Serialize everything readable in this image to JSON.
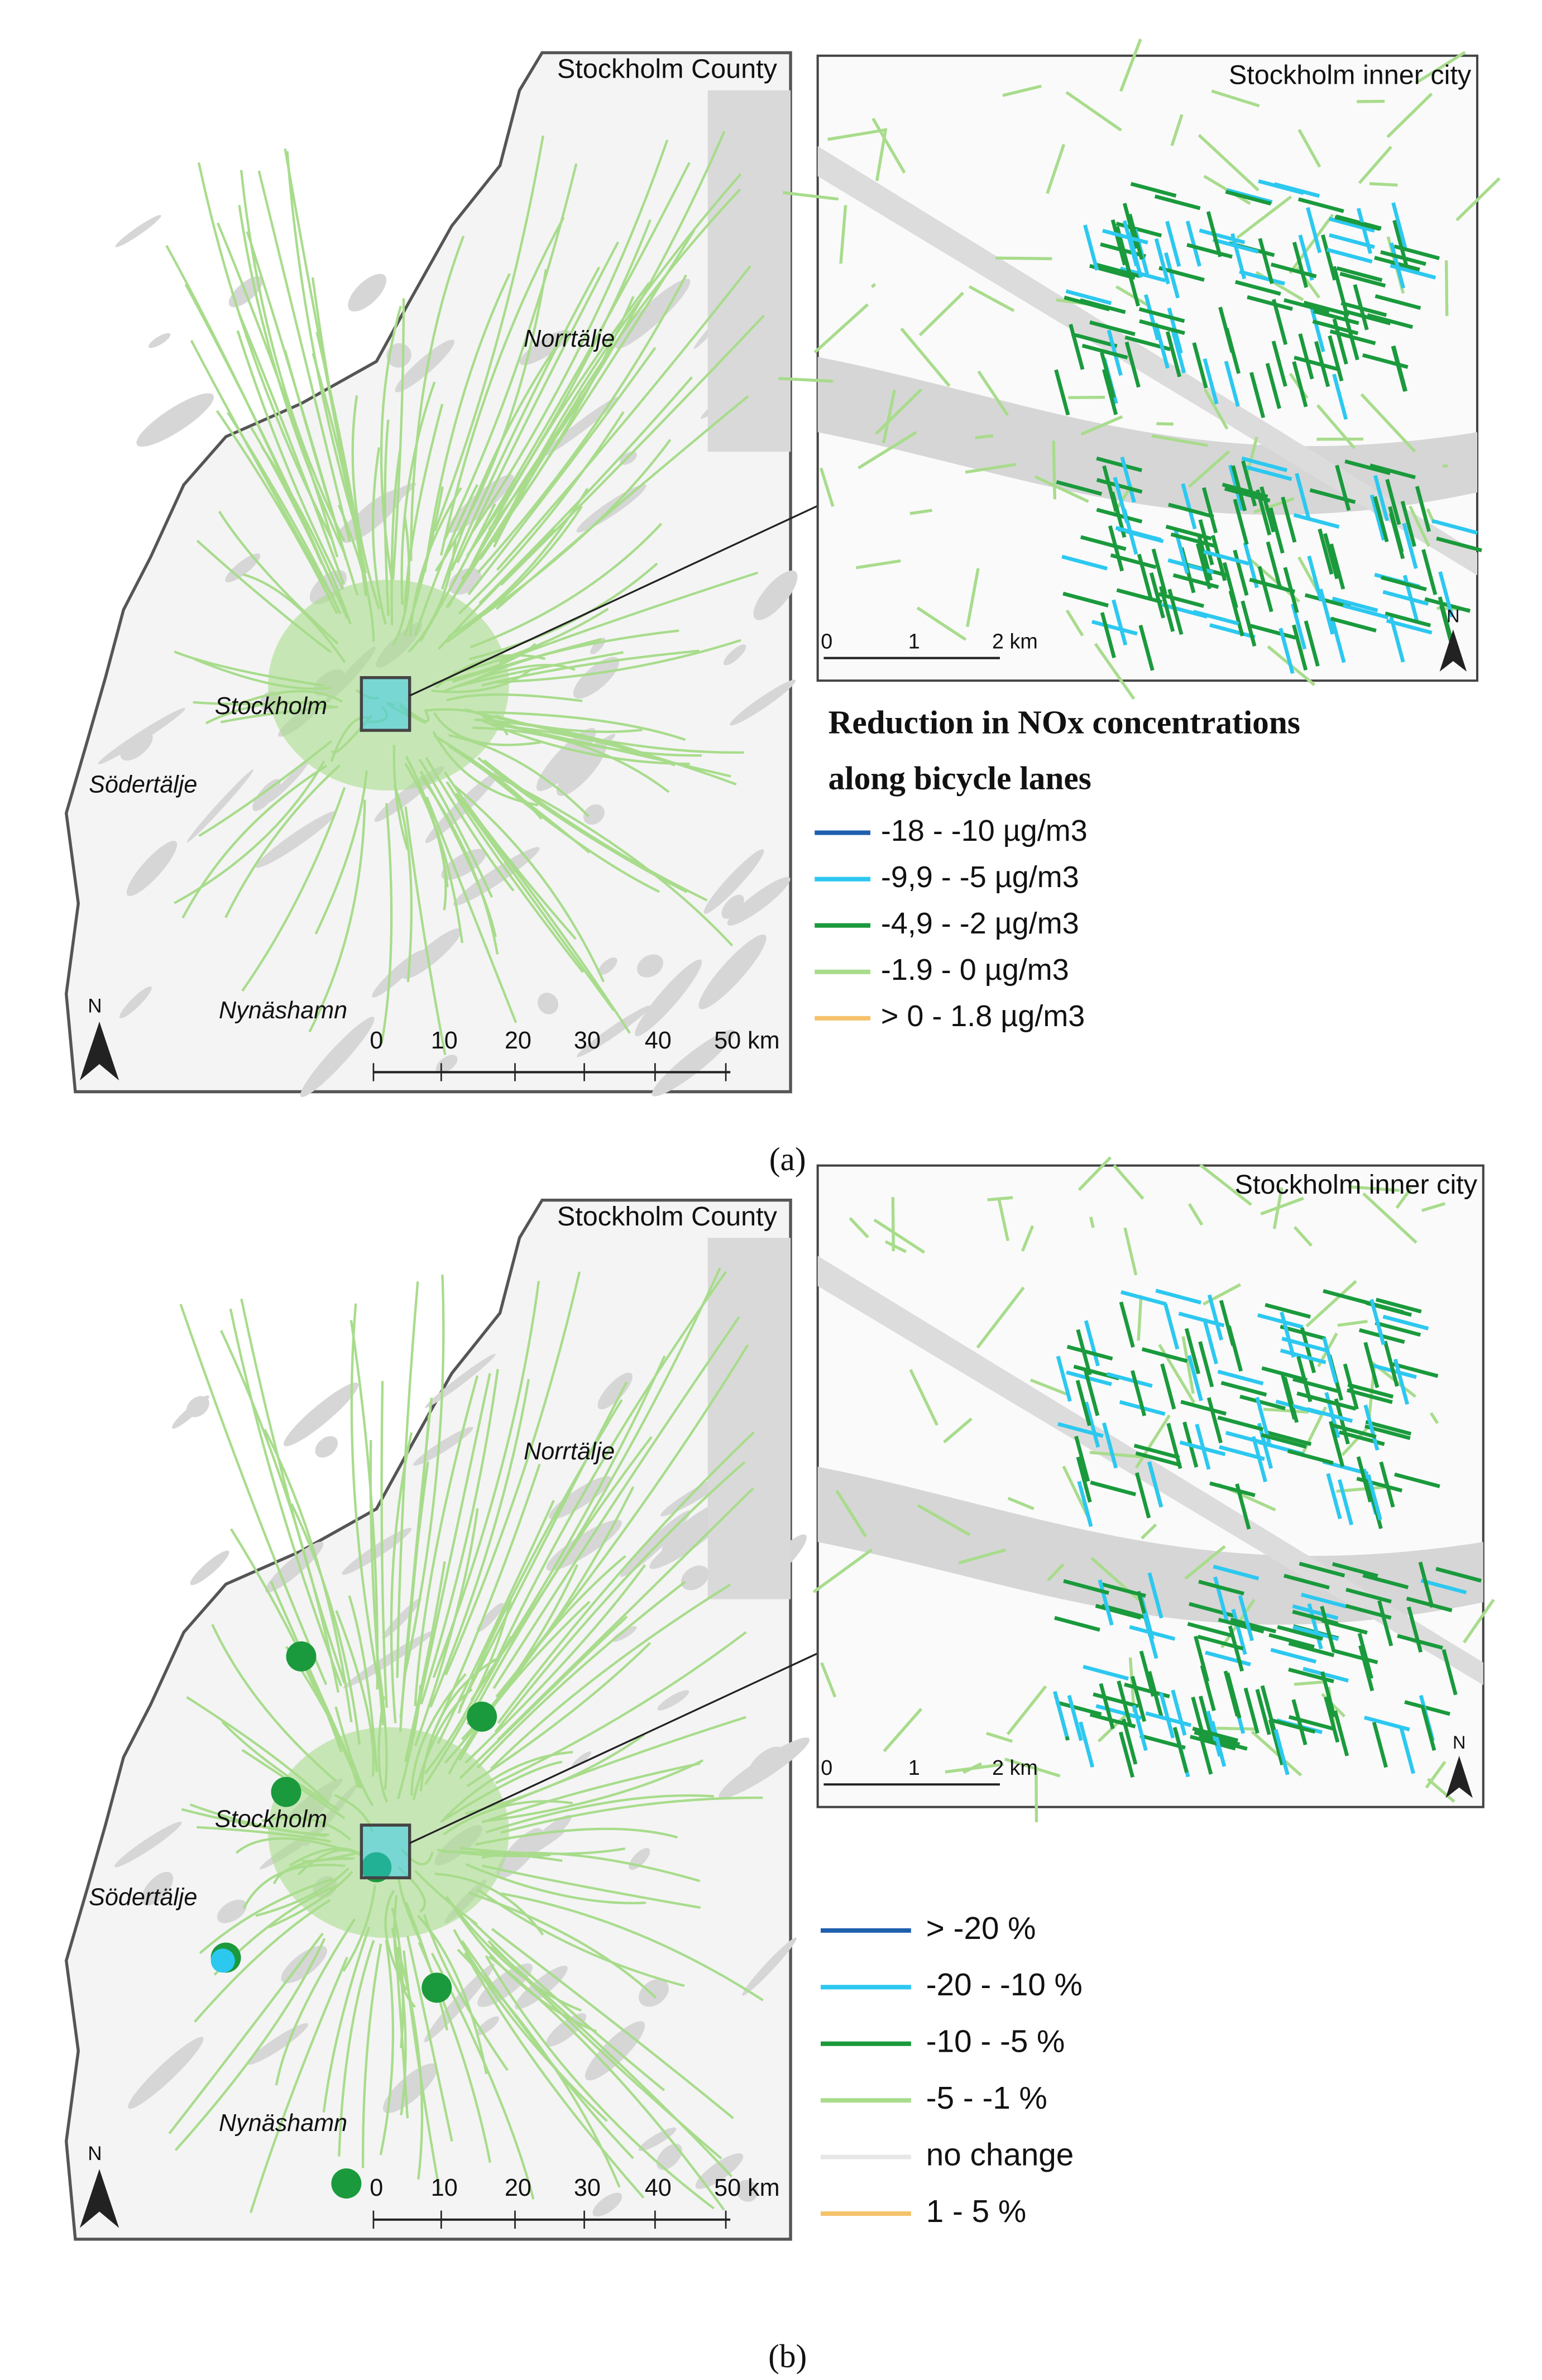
{
  "panels": [
    {
      "caption": "(a)",
      "county_label": "Stockholm County",
      "inset_label": "Stockholm inner city",
      "places": [
        "Norrtälje",
        "Stockholm",
        "Södertälje",
        "Nynäshamn"
      ],
      "north": "N",
      "scale_labels": [
        "0",
        "10",
        "20",
        "30",
        "40",
        "50 km"
      ],
      "inset_scale_labels": [
        "0",
        "1",
        "2 km"
      ],
      "legend_title": [
        "Reduction in NOx concentrations",
        "along bicycle lanes"
      ],
      "legend": [
        {
          "label": "-18 - -10 µg/m3",
          "color": "#1f5fae"
        },
        {
          "label": "-9,9 - -5 µg/m3",
          "color": "#2cc8f0"
        },
        {
          "label": "-4,9 - -2 µg/m3",
          "color": "#1a9a3c"
        },
        {
          "label": "-1.9 - 0 µg/m3",
          "color": "#a8dc8c"
        },
        {
          "label": "> 0 - 1.8 µg/m3",
          "color": "#f5c26b"
        }
      ]
    },
    {
      "caption": "(b)",
      "county_label": "Stockholm County",
      "inset_label": "Stockholm inner city",
      "places": [
        "Norrtälje",
        "Stockholm",
        "Södertälje",
        "Nynäshamn"
      ],
      "north": "N",
      "scale_labels": [
        "0",
        "10",
        "20",
        "30",
        "40",
        "50 km"
      ],
      "inset_scale_labels": [
        "0",
        "1",
        "2 km"
      ],
      "legend": [
        {
          "label": "> -20 %",
          "color": "#1f5fae"
        },
        {
          "label": "-20 - -10 %",
          "color": "#2cc8f0"
        },
        {
          "label": "-10 - -5 %",
          "color": "#1a9a3c"
        },
        {
          "label": "-5 - -1 %",
          "color": "#a8dc8c"
        },
        {
          "label": "no change",
          "color": "#e6e6e6"
        },
        {
          "label": "1 - 5 %",
          "color": "#f5c26b"
        }
      ]
    }
  ]
}
